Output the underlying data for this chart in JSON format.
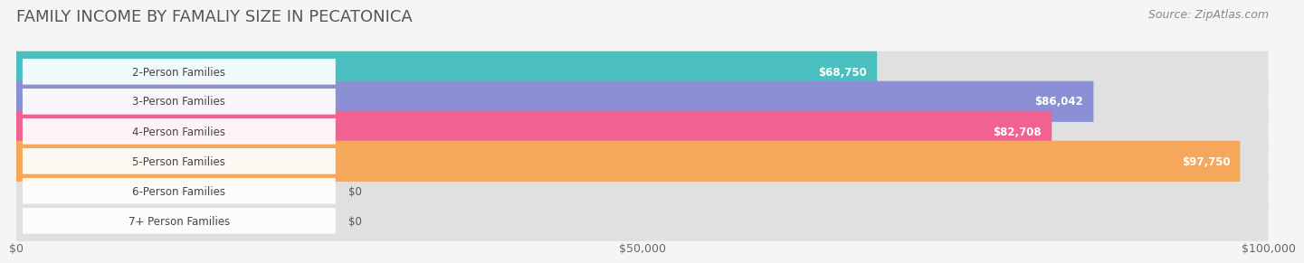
{
  "title": "FAMILY INCOME BY FAMALIY SIZE IN PECATONICA",
  "source": "Source: ZipAtlas.com",
  "categories": [
    "2-Person Families",
    "3-Person Families",
    "4-Person Families",
    "5-Person Families",
    "6-Person Families",
    "7+ Person Families"
  ],
  "values": [
    68750,
    86042,
    82708,
    97750,
    0,
    0
  ],
  "bar_colors": [
    "#4BBFBF",
    "#8B8FD4",
    "#F06292",
    "#F5A85A",
    "#F4A0A0",
    "#A0B8E0"
  ],
  "value_labels": [
    "$68,750",
    "$86,042",
    "$82,708",
    "$97,750",
    "$0",
    "$0"
  ],
  "xmax": 100000,
  "xticks": [
    0,
    50000,
    100000
  ],
  "xtick_labels": [
    "$0",
    "$50,000",
    "$100,000"
  ],
  "background_color": "#f5f5f5",
  "bar_background_color": "#e0e0e0",
  "title_fontsize": 13,
  "source_fontsize": 9,
  "label_fontsize": 8.5,
  "value_fontsize": 8.5
}
